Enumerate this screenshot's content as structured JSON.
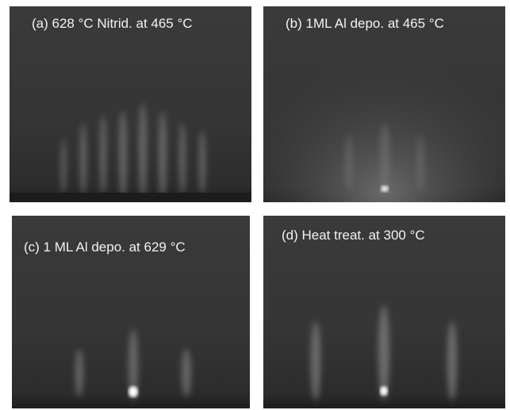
{
  "panels": [
    {
      "caption": "(a) 628 °C Nitrid. at 465 °C"
    },
    {
      "caption": "(b) 1ML Al depo. at 465 °C"
    },
    {
      "caption": "(c) 1 ML Al depo. at 629 °C"
    },
    {
      "caption": "(d) Heat treat. at 300 °C"
    }
  ]
}
